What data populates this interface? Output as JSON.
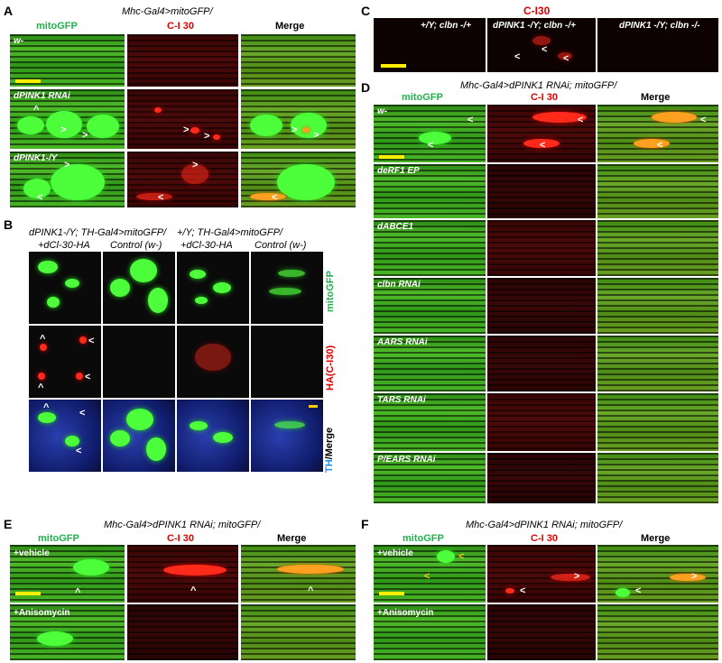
{
  "panels": {
    "A": {
      "letter": "A",
      "title": "Mhc-Gal4>mitoGFP/",
      "headers": [
        "mitoGFP",
        "C-I 30",
        "Merge"
      ],
      "rows": [
        "w-",
        "dPINK1 RNAi",
        "dPINK1-/Y"
      ]
    },
    "B": {
      "letter": "B",
      "group1": "dPINK1-/Y; TH-Gal4>mitoGFP/",
      "group2": "+/Y; TH-Gal4>mitoGFP/",
      "cols": [
        "+dCl-30-HA",
        "Control (w-)",
        "+dCl-30-HA",
        "Control (w-)"
      ],
      "side_mito": "mitoGFP",
      "side_ha": "HA(C-I30)",
      "side_th": "TH",
      "side_merge": "/Merge"
    },
    "C": {
      "letter": "C",
      "title": "C-I30",
      "cols": [
        "+/Y; clbn -/+",
        "dPINK1 -/Y; clbn -/+",
        "dPINK1 -/Y; clbn -/-"
      ]
    },
    "D": {
      "letter": "D",
      "title": "Mhc-Gal4>dPINK1 RNAi; mitoGFP/",
      "headers": [
        "mitoGFP",
        "C-I 30",
        "Merge"
      ],
      "rows": [
        "w-",
        "deRF1 EP",
        "dABCE1",
        "clbn RNAi",
        "AARS RNAi",
        "TARS RNAi",
        "P/EARS RNAi"
      ]
    },
    "E": {
      "letter": "E",
      "title": "Mhc-Gal4>dPINK1 RNAi; mitoGFP/",
      "headers": [
        "mitoGFP",
        "C-I 30",
        "Merge"
      ],
      "rows": [
        "+vehicle",
        "+Anisomycin"
      ]
    },
    "F": {
      "letter": "F",
      "title": "Mhc-Gal4>dPINK1 RNAi; mitoGFP/",
      "headers": [
        "mitoGFP",
        "C-I 30",
        "Merge"
      ],
      "rows": [
        "+vehicle",
        "+Anisomycin"
      ]
    }
  },
  "arrow": "<",
  "arrow_up": "^",
  "arrow_right": ">"
}
